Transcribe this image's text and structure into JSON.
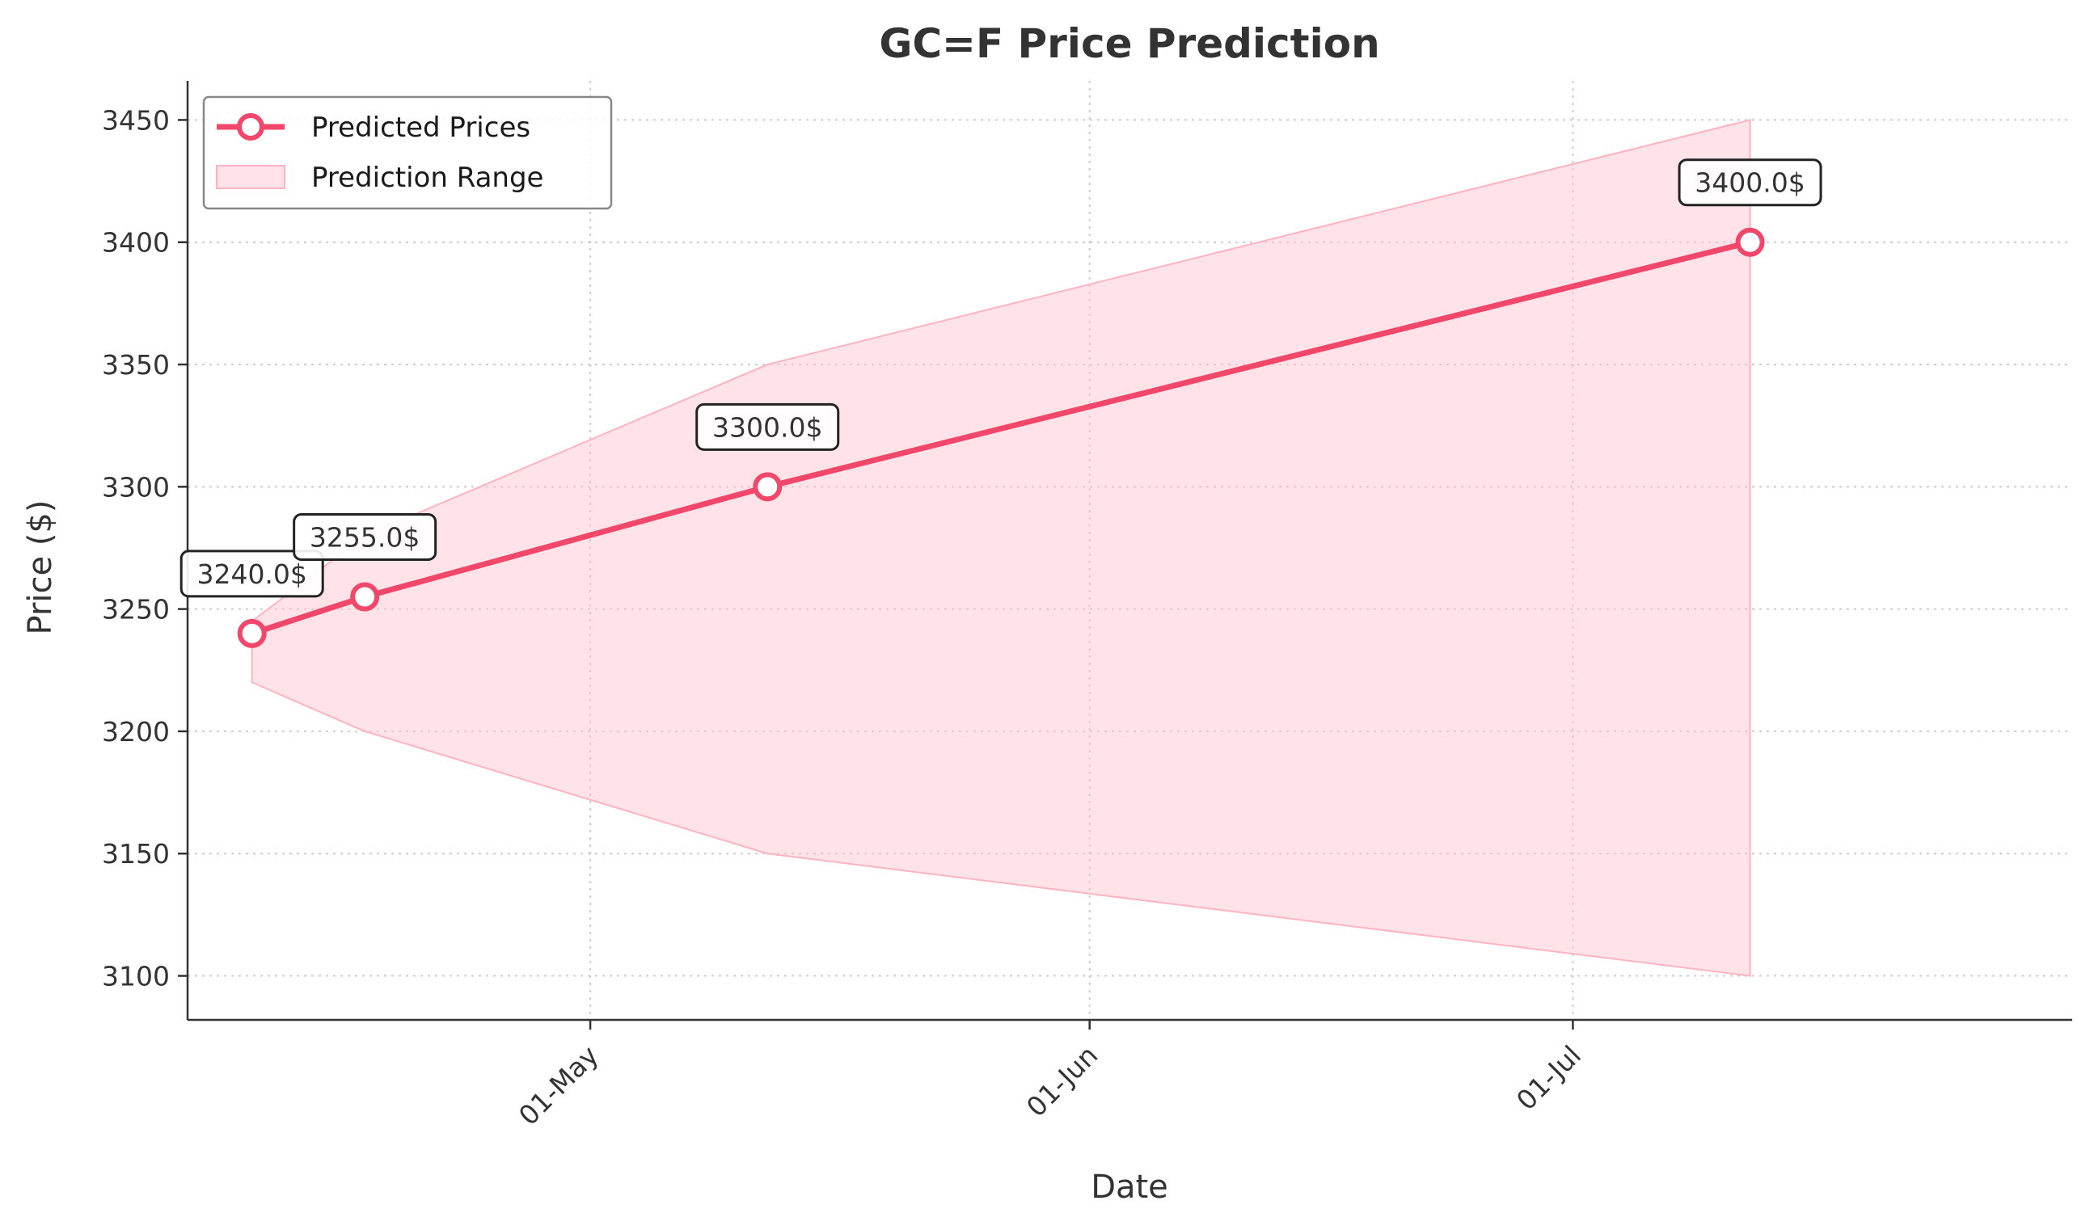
{
  "chart_data": {
    "type": "line",
    "title": "GC=F Price Prediction",
    "xlabel": "Date",
    "ylabel": "Price ($)",
    "x_ticks": [
      {
        "date": "2025-05-01",
        "label": "01-May"
      },
      {
        "date": "2025-06-01",
        "label": "01-Jun"
      },
      {
        "date": "2025-07-01",
        "label": "01-Jul"
      }
    ],
    "y_ticks": [
      3100,
      3150,
      3200,
      3250,
      3300,
      3350,
      3400,
      3450
    ],
    "xlim": [
      "2025-04-06",
      "2025-08-01"
    ],
    "ylim": [
      3082,
      3466
    ],
    "grid": true,
    "legend_position": "top-left",
    "series": [
      {
        "name": "Predicted Prices",
        "color": "#f0476a",
        "points": [
          {
            "date": "2025-04-10",
            "value": 3240.0,
            "label": "3240.0$"
          },
          {
            "date": "2025-04-17",
            "value": 3255.0,
            "label": "3255.0$"
          },
          {
            "date": "2025-05-12",
            "value": 3300.0,
            "label": "3300.0$"
          },
          {
            "date": "2025-07-12",
            "value": 3400.0,
            "label": "3400.0$"
          }
        ]
      }
    ],
    "range": {
      "name": "Prediction Range",
      "color": "#ffc0cb",
      "points": [
        {
          "date": "2025-04-10",
          "low": 3220,
          "high": 3245
        },
        {
          "date": "2025-04-17",
          "low": 3200,
          "high": 3280
        },
        {
          "date": "2025-05-12",
          "low": 3150,
          "high": 3350
        },
        {
          "date": "2025-07-12",
          "low": 3100,
          "high": 3450
        }
      ]
    }
  }
}
